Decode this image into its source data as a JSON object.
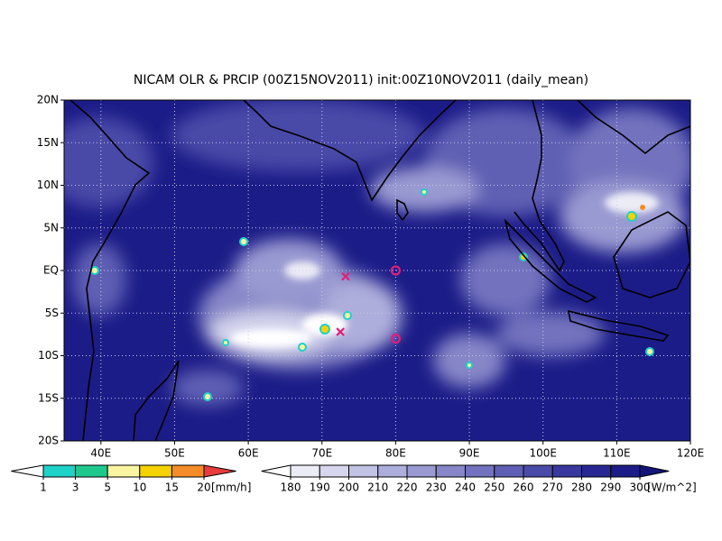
{
  "title": "NICAM OLR & PRCIP (00Z15NOV2011) init:00Z10NOV2011 (daily_mean)",
  "map": {
    "lonlim": [
      35,
      120
    ],
    "latlim": [
      -20,
      20
    ],
    "lon_ticks": [
      {
        "value": 40,
        "label": "40E"
      },
      {
        "value": 50,
        "label": "50E"
      },
      {
        "value": 60,
        "label": "60E"
      },
      {
        "value": 70,
        "label": "70E"
      },
      {
        "value": 80,
        "label": "80E"
      },
      {
        "value": 90,
        "label": "90E"
      },
      {
        "value": 100,
        "label": "100E"
      },
      {
        "value": 110,
        "label": "110E"
      },
      {
        "value": 120,
        "label": "120E"
      }
    ],
    "lat_ticks": [
      {
        "value": 20,
        "label": "20N"
      },
      {
        "value": 15,
        "label": "15N"
      },
      {
        "value": 10,
        "label": "10N"
      },
      {
        "value": 5,
        "label": "5N"
      },
      {
        "value": 0,
        "label": "EQ"
      },
      {
        "value": -5,
        "label": "5S"
      },
      {
        "value": -10,
        "label": "10S"
      },
      {
        "value": -15,
        "label": "15S"
      },
      {
        "value": -20,
        "label": "20S"
      }
    ],
    "grid": true,
    "markers": [
      {
        "symbol": "cross",
        "color": "#e0207a",
        "lon": 73.2,
        "lat": -0.7
      },
      {
        "symbol": "cross",
        "color": "#e0207a",
        "lon": 72.5,
        "lat": -7.2
      },
      {
        "symbol": "circle",
        "color": "#e0207a",
        "lon": 80,
        "lat": 0
      },
      {
        "symbol": "circle",
        "color": "#e0207a",
        "lon": 80,
        "lat": -8
      }
    ]
  },
  "precip_colorbar": {
    "levels": [
      1,
      3,
      5,
      10,
      15,
      20
    ],
    "unit": "[mm/h]",
    "colors": [
      "#ffffff",
      "#1ed2c8",
      "#1ec88c",
      "#faf5a0",
      "#f5d200",
      "#f58c28",
      "#e63c3c"
    ]
  },
  "olr_colorbar": {
    "levels": [
      180,
      190,
      200,
      210,
      220,
      230,
      240,
      250,
      260,
      270,
      280,
      290,
      300
    ],
    "unit": "[W/m^2]",
    "colors": [
      "#ffffff",
      "#ececf6",
      "#d6d6ee",
      "#c2c2e4",
      "#aeaedc",
      "#9a9ad2",
      "#8686c8",
      "#7272be",
      "#5e5eb4",
      "#4a4aa8",
      "#38389e",
      "#282894",
      "#1c1c88",
      "#14147a"
    ]
  }
}
